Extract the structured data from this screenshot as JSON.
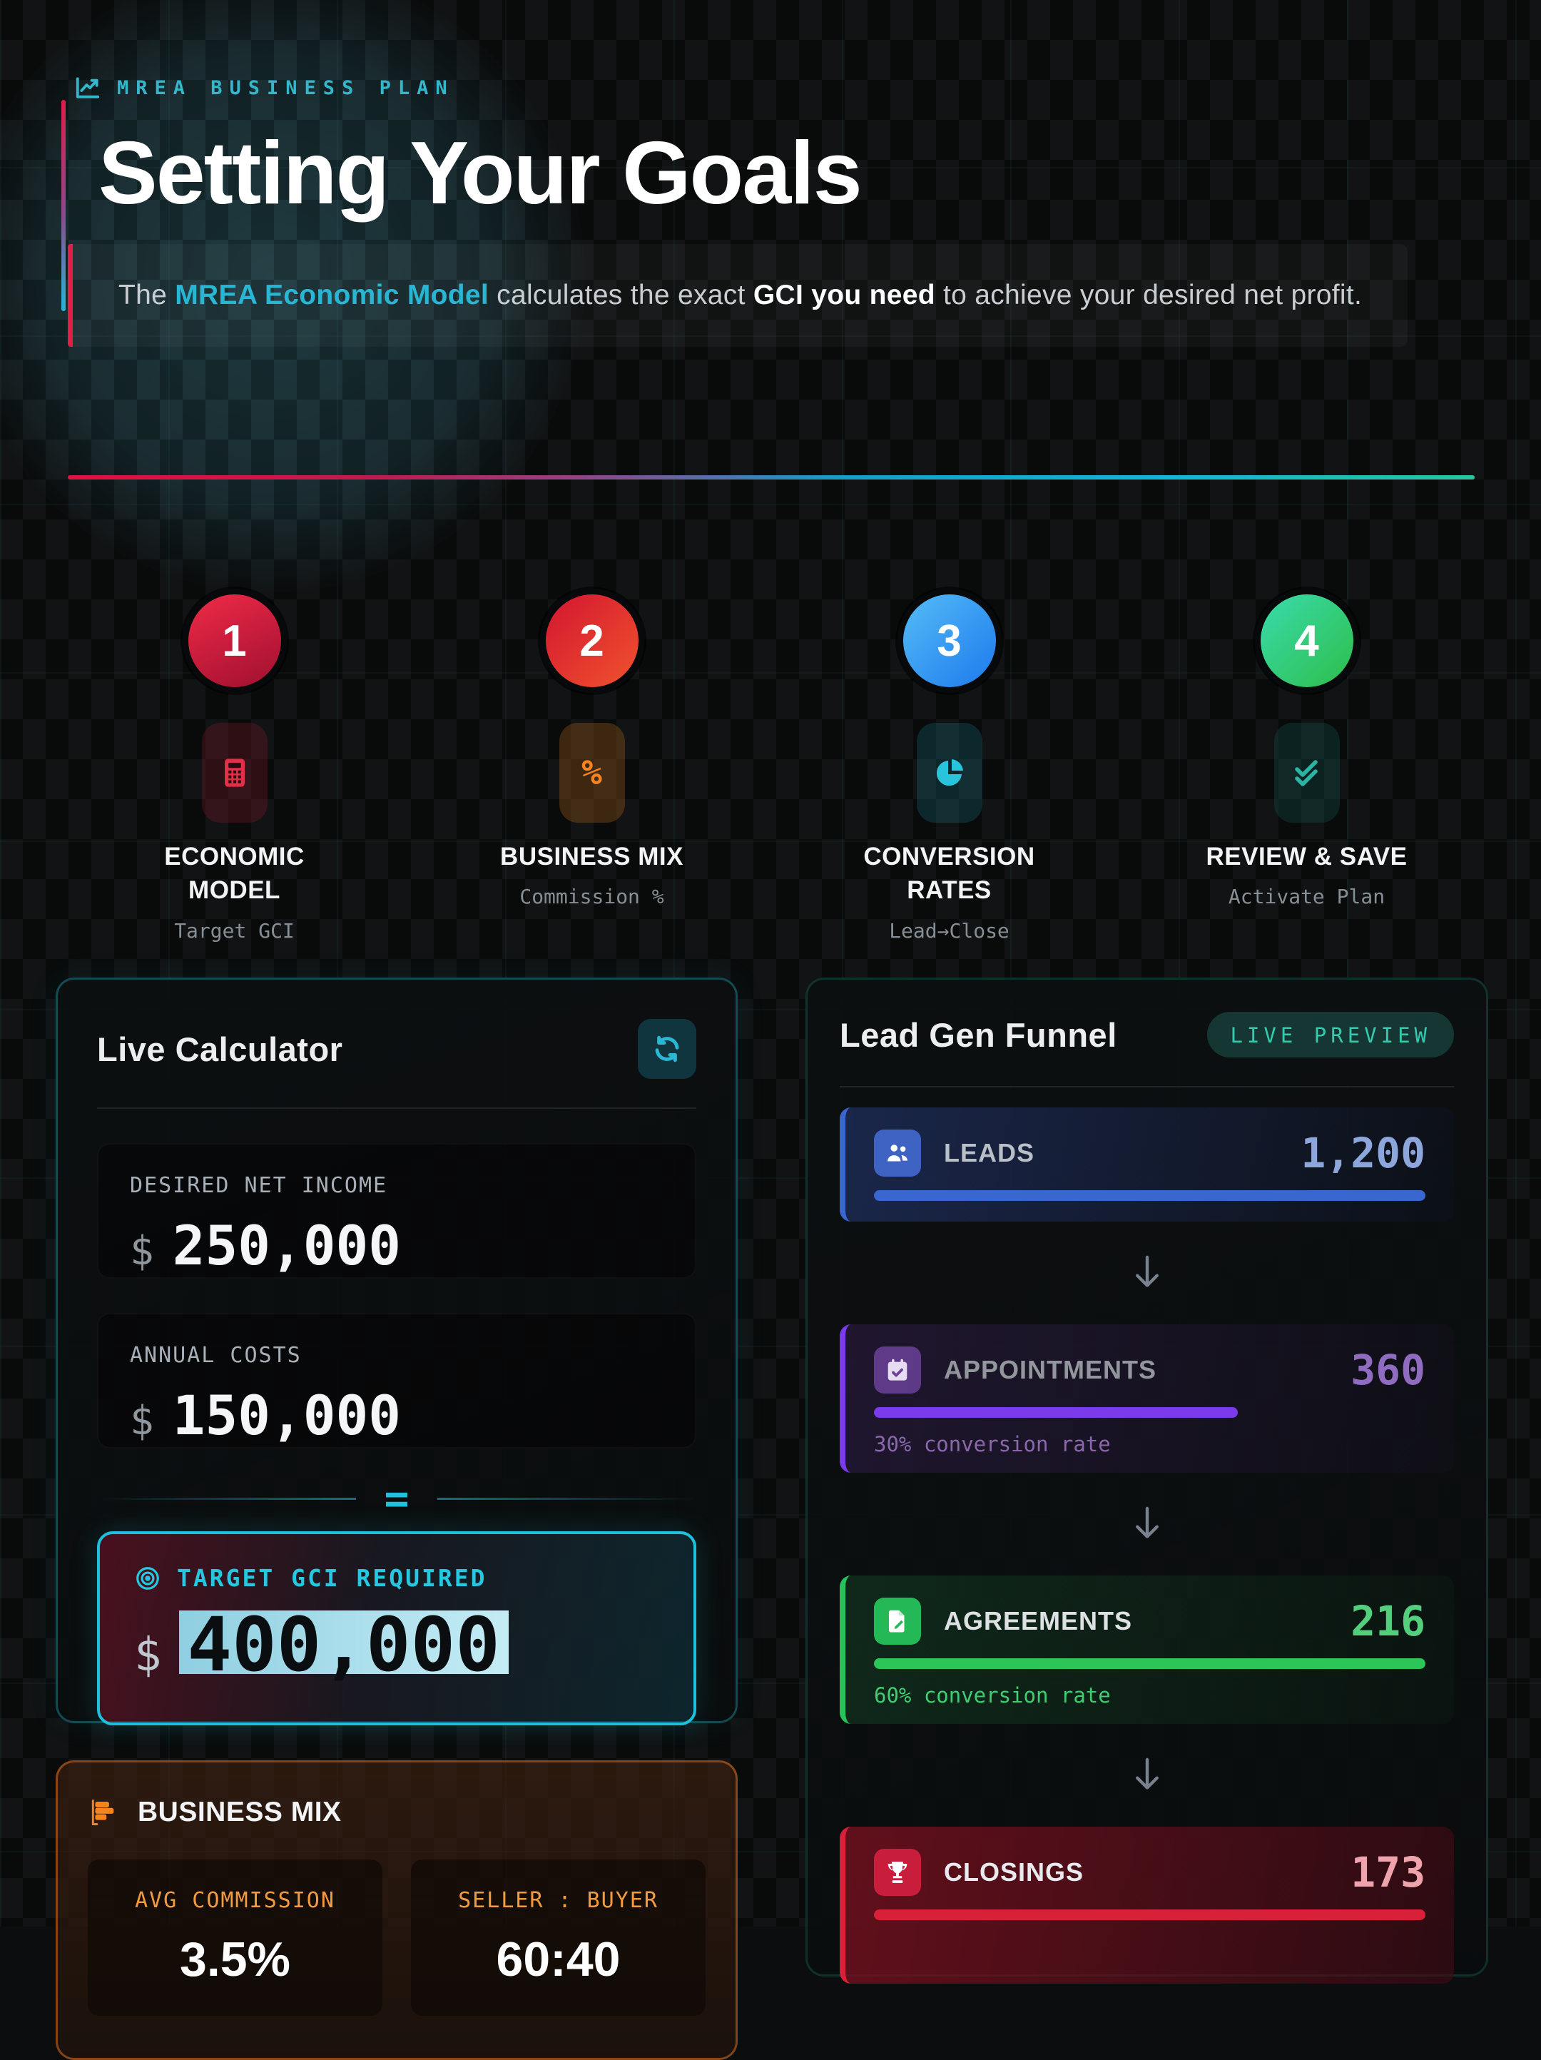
{
  "header": {
    "eyebrow": "MREA BUSINESS PLAN",
    "title": "Setting Your Goals",
    "subtitle": {
      "prefix": "The ",
      "highlight": "MREA Economic Model",
      "middle": " calculates the exact ",
      "strong": "GCI you need",
      "suffix": " to achieve your desired net profit."
    },
    "accent_colors": {
      "red": "#e11d48",
      "cyan": "#22b8d4"
    }
  },
  "steps": [
    {
      "number": "1",
      "label": "ECONOMIC MODEL",
      "sublabel": "Target GCI",
      "icon": "calculator-icon",
      "accent": "#d81b3c"
    },
    {
      "number": "2",
      "label": "BUSINESS MIX",
      "sublabel": "Commission %",
      "icon": "percent-icon",
      "accent": "#f0562e"
    },
    {
      "number": "3",
      "label": "CONVERSION RATES",
      "sublabel": "Lead→Close",
      "icon": "pie-chart-icon",
      "accent": "#2f9ef4"
    },
    {
      "number": "4",
      "label": "REVIEW & SAVE",
      "sublabel": "Activate Plan",
      "icon": "double-check-icon",
      "accent": "#2fce7a"
    }
  ],
  "calculator": {
    "title": "Live Calculator",
    "refresh_icon": "refresh-icon",
    "fields": [
      {
        "label": "DESIRED NET INCOME",
        "currency": "$",
        "value": "250,000"
      },
      {
        "label": "ANNUAL COSTS",
        "currency": "$",
        "value": "150,000"
      }
    ],
    "operator": "=",
    "result": {
      "label": "TARGET GCI REQUIRED",
      "currency": "$",
      "value": "400,000",
      "accent": "#1fc0dc"
    }
  },
  "business_mix": {
    "title": "BUSINESS MIX",
    "icon": "bar-chart-icon",
    "accent": "#f5831e",
    "stats": [
      {
        "label": "AVG COMMISSION",
        "value": "3.5%"
      },
      {
        "label": "SELLER : BUYER",
        "value": "60:40"
      }
    ]
  },
  "funnel": {
    "title": "Lead Gen Funnel",
    "badge": "LIVE PREVIEW",
    "stages": [
      {
        "label": "LEADS",
        "value": "1,200",
        "bar_pct": 100,
        "note": "",
        "icon": "users-icon",
        "accent": "#3a67cf"
      },
      {
        "label": "APPOINTMENTS",
        "value": "360",
        "bar_pct": 66,
        "note": "30% conversion rate",
        "icon": "calendar-check-icon",
        "accent": "#7c3aed"
      },
      {
        "label": "AGREEMENTS",
        "value": "216",
        "bar_pct": 100,
        "note": "60% conversion rate",
        "icon": "file-pen-icon",
        "accent": "#28c25c"
      },
      {
        "label": "CLOSINGS",
        "value": "173",
        "bar_pct": 100,
        "note": "",
        "icon": "trophy-icon",
        "accent": "#d92039"
      }
    ]
  }
}
